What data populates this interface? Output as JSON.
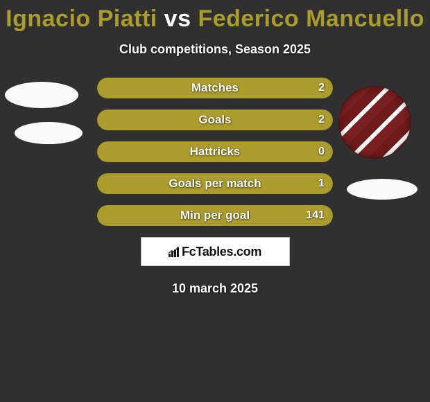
{
  "background_color": "#303030",
  "title": {
    "player1": "Ignacio Piatti",
    "vs": " vs ",
    "player2": "Federico Mancuello",
    "player1_color": "#aa9c2d",
    "player2_color": "#aa9c2d",
    "vs_color": "#ffffff",
    "fontsize": 34
  },
  "subtitle": {
    "text": "Club competitions, Season 2025",
    "color": "#ffffff",
    "fontsize": 18
  },
  "bar_style": {
    "fill_color": "#aa9c2d",
    "empty_color": "#aa9c2d",
    "height": 30,
    "radius": 16,
    "label_fontsize": 17,
    "value_fontsize": 16,
    "text_color": "#ffffff"
  },
  "stats": [
    {
      "label": "Matches",
      "value": "2",
      "fill_pct": 100
    },
    {
      "label": "Goals",
      "value": "2",
      "fill_pct": 100
    },
    {
      "label": "Hattricks",
      "value": "0",
      "fill_pct": 100
    },
    {
      "label": "Goals per match",
      "value": "1",
      "fill_pct": 100
    },
    {
      "label": "Min per goal",
      "value": "141",
      "fill_pct": 100
    }
  ],
  "brand": {
    "text": "FcTables.com",
    "bg": "#ffffff",
    "border": "#bdbdbd"
  },
  "date": {
    "text": "10 march 2025",
    "color": "#ffffff",
    "fontsize": 18
  },
  "avatars": {
    "left1_bg": "#fafafa",
    "left2_bg": "#fafafa",
    "right_colors": [
      "#6e1a1a",
      "#ffffff",
      "#7a2020"
    ]
  }
}
